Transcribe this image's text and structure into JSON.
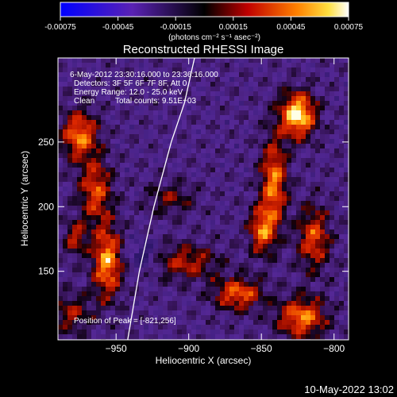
{
  "chart_data": {
    "type": "heatmap",
    "title": "Reconstructed RHESSI Image",
    "xlabel": "Heliocentric X (arcsec)",
    "ylabel": "Heliocentric Y (arcsec)",
    "xlim": [
      -990,
      -790
    ],
    "ylim": [
      97,
      315
    ],
    "x_ticks": [
      -950,
      -900,
      -850,
      -800
    ],
    "y_ticks": [
      150,
      200,
      250
    ],
    "colorbar": {
      "ticks": [
        "-0.00075",
        "-0.00045",
        "-0.00015",
        "0.00015",
        "0.00045",
        "0.00075"
      ],
      "range": [
        -0.00075,
        0.00075
      ],
      "unit_label": "(photons cm⁻² s⁻¹ asec⁻²)"
    },
    "annotations": {
      "time": "6-May-2012 23:30:16.000 to 23:36:16.000",
      "detectors": "Detectors: 3F 5F 6F 7F 8F, Att 0",
      "energy": "Energy Range: 12.0 - 25.0 keV",
      "method": "Clean",
      "counts": "Total counts: 9.51E+03",
      "peak": "Position of Peak = [-821,256]"
    },
    "limb_curve": [
      [
        -942,
        97
      ],
      [
        -934,
        150
      ],
      [
        -924,
        200
      ],
      [
        -912,
        250
      ],
      [
        -903,
        280
      ],
      [
        -896,
        315
      ]
    ]
  },
  "footer_date": "10-May-2022 13:02"
}
